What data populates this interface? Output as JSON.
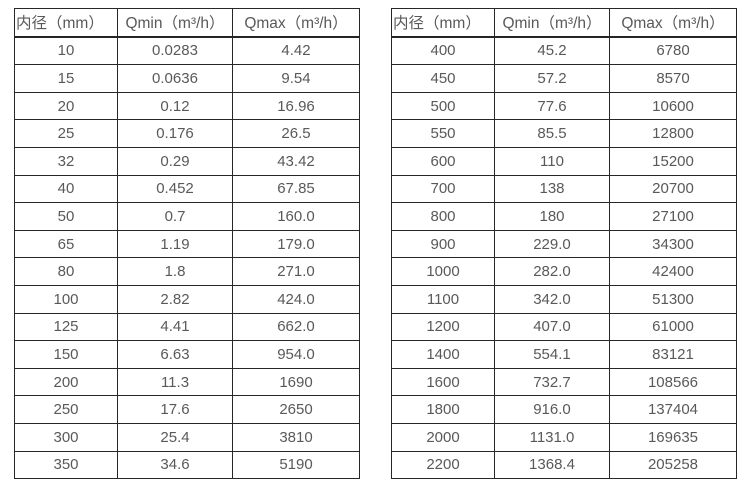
{
  "tables": {
    "left": {
      "headers": [
        "内径（mm）",
        "Qmin（m³/h）",
        "Qmax（m³/h）"
      ],
      "rows": [
        [
          "10",
          "0.0283",
          "4.42"
        ],
        [
          "15",
          "0.0636",
          "9.54"
        ],
        [
          "20",
          "0.12",
          "16.96"
        ],
        [
          "25",
          "0.176",
          "26.5"
        ],
        [
          "32",
          "0.29",
          "43.42"
        ],
        [
          "40",
          "0.452",
          "67.85"
        ],
        [
          "50",
          "0.7",
          "160.0"
        ],
        [
          "65",
          "1.19",
          "179.0"
        ],
        [
          "80",
          "1.8",
          "271.0"
        ],
        [
          "100",
          "2.82",
          "424.0"
        ],
        [
          "125",
          "4.41",
          "662.0"
        ],
        [
          "150",
          "6.63",
          "954.0"
        ],
        [
          "200",
          "11.3",
          "1690"
        ],
        [
          "250",
          "17.6",
          "2650"
        ],
        [
          "300",
          "25.4",
          "3810"
        ],
        [
          "350",
          "34.6",
          "5190"
        ]
      ]
    },
    "right": {
      "headers": [
        "内径（mm）",
        "Qmin（m³/h）",
        "Qmax（m³/h）"
      ],
      "rows": [
        [
          "400",
          "45.2",
          "6780"
        ],
        [
          "450",
          "57.2",
          "8570"
        ],
        [
          "500",
          "77.6",
          "10600"
        ],
        [
          "550",
          "85.5",
          "12800"
        ],
        [
          "600",
          "110",
          "15200"
        ],
        [
          "700",
          "138",
          "20700"
        ],
        [
          "800",
          "180",
          "27100"
        ],
        [
          "900",
          "229.0",
          "34300"
        ],
        [
          "1000",
          "282.0",
          "42400"
        ],
        [
          "1100",
          "342.0",
          "51300"
        ],
        [
          "1200",
          "407.0",
          "61000"
        ],
        [
          "1400",
          "554.1",
          "83121"
        ],
        [
          "1600",
          "732.7",
          "108566"
        ],
        [
          "1800",
          "916.0",
          "137404"
        ],
        [
          "2000",
          "1131.0",
          "169635"
        ],
        [
          "2200",
          "1368.4",
          "205258"
        ]
      ]
    }
  },
  "colors": {
    "text": "#595959",
    "border": "#262626",
    "background": "#ffffff"
  }
}
